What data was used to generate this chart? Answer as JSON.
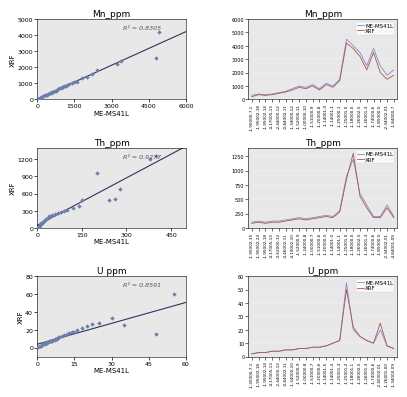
{
  "title_mn": "Mn_ppm",
  "title_th": "Th_ppm",
  "title_u": "U ppm",
  "title_u_ts": "U_ppm",
  "xlabel_mn": "ME-MS41L",
  "xlabel_th": "ME-MS41L",
  "xlabel_u": "ME-MS41L",
  "ylabel": "XRF",
  "r2_mn": "R² = 0.8305",
  "r2_th": "R² = 0.9277",
  "r2_u": "R² = 0.8591",
  "legend_ms": "ME-MS41L",
  "legend_xrf": "XRF",
  "scatter_color": "#6b7faa",
  "line_color": "#333355",
  "ms_line_color": "#8888cc",
  "xrf_line_color": "#aa5555",
  "plot_bg": "#e8e8e8",
  "mn_scatter_x": [
    50,
    100,
    150,
    200,
    250,
    300,
    350,
    400,
    450,
    500,
    550,
    600,
    650,
    700,
    750,
    800,
    850,
    900,
    950,
    1000,
    1050,
    1100,
    1150,
    1200,
    1300,
    1400,
    1500,
    1600,
    1800,
    2000,
    2200,
    2400,
    3200,
    3400,
    4800,
    4900
  ],
  "mn_scatter_y": [
    50,
    100,
    150,
    150,
    200,
    250,
    280,
    300,
    350,
    380,
    400,
    450,
    480,
    500,
    550,
    600,
    620,
    680,
    700,
    750,
    780,
    820,
    850,
    900,
    950,
    1000,
    1050,
    1100,
    1300,
    1400,
    1600,
    1800,
    2200,
    2400,
    2600,
    4200
  ],
  "mn_xlim": [
    0,
    6000
  ],
  "mn_ylim": [
    0,
    5000
  ],
  "th_scatter_x": [
    2,
    4,
    5,
    6,
    7,
    8,
    10,
    12,
    14,
    16,
    18,
    20,
    22,
    25,
    28,
    30,
    35,
    40,
    45,
    50,
    60,
    70,
    80,
    90,
    100,
    120,
    140,
    150,
    200,
    240,
    260,
    280,
    380,
    400
  ],
  "th_scatter_y": [
    5,
    10,
    20,
    30,
    40,
    50,
    60,
    70,
    80,
    90,
    100,
    110,
    120,
    140,
    150,
    160,
    180,
    200,
    210,
    220,
    240,
    260,
    280,
    300,
    320,
    350,
    380,
    480,
    950,
    490,
    500,
    680,
    1200,
    1250
  ],
  "th_xlim": [
    0,
    500
  ],
  "th_ylim": [
    0,
    1400
  ],
  "u_scatter_x": [
    0.5,
    1,
    1.5,
    2,
    2.5,
    3,
    3,
    3.5,
    4,
    4,
    4.5,
    5,
    5,
    5.5,
    6,
    6,
    7,
    7,
    8,
    8,
    9,
    9,
    10,
    11,
    12,
    13,
    14,
    15,
    16,
    18,
    20,
    22,
    25,
    30,
    35,
    48,
    55
  ],
  "u_scatter_y": [
    1,
    2,
    2,
    3,
    4,
    4,
    5,
    5,
    5,
    6,
    6,
    7,
    7,
    8,
    8,
    8,
    9,
    10,
    10,
    11,
    12,
    12,
    13,
    14,
    15,
    16,
    17,
    18,
    20,
    22,
    24,
    26,
    28,
    33,
    25,
    15,
    60
  ],
  "u_xlim": [
    0,
    60
  ],
  "u_ylim": [
    -10,
    80
  ],
  "time_labels_mn": [
    "-1.95000-7.1",
    "-1.95002-18",
    "-1.95002-14",
    "-4.17005-13",
    "-2.44000-12",
    "-0.84002-11",
    "-1.34000-12",
    "-1.52000-11",
    "-1.00000-10",
    "-1.51000-9",
    "-1.20000-8",
    "-1.14001-0",
    "-1.14001-1",
    "-1.25000-1",
    "-1.25001-0",
    "-1.18000-0",
    "-1.26002-5",
    "-1.26001-3",
    "-1.74000-6",
    "-1.85000-0",
    "-2.34002-01",
    "-1.84000-7"
  ],
  "time_labels_th": [
    "-1.95002-35",
    "-1.95002-24",
    "-1.95002-18",
    "-4.17005-13",
    "-3.62000-12",
    "-4.46002-11",
    "-4.19002-10",
    "-1.52000-9",
    "-1.34000-8",
    "-1.00000-7",
    "-1.51000-6",
    "-1.20000-5",
    "-1.14001-0",
    "-1.14001-1",
    "-1.25001-0",
    "-1.18000-0",
    "-1.26002-5",
    "-1.26001-3",
    "-1.74000-6",
    "-1.85000-0",
    "-2.34002-01",
    "-4.84001-09"
  ],
  "time_labels_u": [
    "-1.30000-7.1",
    "-1.95002-18",
    "-1.95002-14",
    "-4.17005-13",
    "-2.44000-12",
    "-0.84002-11",
    "-1.34000-10",
    "-1.52000-9",
    "-1.00000-8",
    "-1.51000-7",
    "-1.20000-6",
    "-1.14001-5",
    "-1.14001-4",
    "-1.25001-3",
    "-1.25001-2",
    "-1.18001-1",
    "-1.26002-5",
    "-1.26001-3",
    "-1.74000-6",
    "-2.40002-01",
    "-1.26001-00",
    "-1.34000-09"
  ],
  "mn_ts_ms": [
    300,
    400,
    350,
    400,
    500,
    600,
    800,
    1000,
    900,
    1100,
    800,
    1200,
    1000,
    1500,
    4500,
    4000,
    3500,
    2500,
    3800,
    2500,
    1800,
    2200
  ],
  "mn_ts_xrf": [
    200,
    350,
    300,
    350,
    450,
    550,
    700,
    900,
    800,
    1000,
    700,
    1100,
    900,
    1400,
    4200,
    3800,
    3200,
    2200,
    3500,
    2000,
    1500,
    1800
  ],
  "mn_ts_ylim": [
    0,
    6000
  ],
  "th_ts_ms": [
    100,
    120,
    100,
    120,
    120,
    140,
    160,
    180,
    160,
    180,
    200,
    220,
    200,
    300,
    900,
    1200,
    600,
    400,
    200,
    200,
    400,
    200
  ],
  "th_ts_xrf": [
    80,
    100,
    80,
    100,
    100,
    120,
    140,
    160,
    140,
    160,
    180,
    200,
    180,
    280,
    850,
    1300,
    550,
    350,
    180,
    180,
    350,
    180
  ],
  "th_ts_ylim": [
    0,
    1400
  ],
  "u_ts_ms": [
    2,
    3,
    3,
    4,
    4,
    5,
    5,
    6,
    6,
    7,
    7,
    8,
    10,
    12,
    55,
    20,
    15,
    12,
    10,
    20,
    8,
    6
  ],
  "u_ts_xrf": [
    2,
    3,
    3,
    4,
    4,
    5,
    5,
    6,
    6,
    7,
    7,
    8,
    10,
    12,
    50,
    22,
    15,
    12,
    10,
    25,
    8,
    6
  ],
  "u_ts_ylim": [
    0,
    60
  ]
}
